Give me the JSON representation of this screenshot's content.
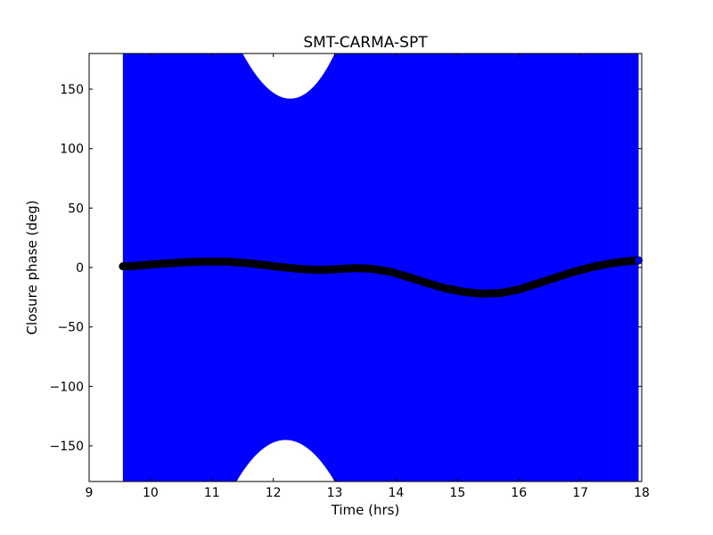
{
  "chart_data": {
    "type": "scatter",
    "title": "SMT-CARMA-SPT",
    "xlabel": "Time (hrs)",
    "ylabel": "Closure phase (deg)",
    "xlim": [
      9,
      18
    ],
    "ylim": [
      -180,
      180
    ],
    "xticks": [
      9,
      10,
      11,
      12,
      13,
      14,
      15,
      16,
      17,
      18
    ],
    "xtick_labels": [
      "9",
      "10",
      "11",
      "12",
      "13",
      "14",
      "15",
      "16",
      "17",
      "18"
    ],
    "yticks": [
      150,
      100,
      50,
      0,
      -50,
      -100,
      -150
    ],
    "ytick_labels": [
      "150",
      "100",
      "50",
      "0",
      "−50",
      "−100",
      "−150"
    ],
    "grid": false,
    "colors": {
      "band": "#0000ff",
      "points": "#000000",
      "last_point": "#0000ff",
      "frame": "#000000"
    },
    "band": {
      "x_range": [
        9.55,
        17.95
      ],
      "upper_gap": {
        "x": [
          11.5,
          12.3,
          13.0
        ],
        "y_bottom_at_center": 142
      },
      "lower_gap": {
        "x": [
          11.4,
          12.2,
          13.0
        ],
        "y_top_at_center": -145
      }
    },
    "series": [
      {
        "x": [
          9.55,
          9.8,
          10.0,
          10.3,
          10.6,
          10.9,
          11.2,
          11.5,
          11.8,
          12.1,
          12.4,
          12.7,
          13.0,
          13.3,
          13.6,
          13.9,
          14.2,
          14.5,
          14.8,
          15.1,
          15.4,
          15.7,
          16.0,
          16.3,
          16.6,
          16.9,
          17.2,
          17.5,
          17.8,
          17.95
        ],
        "y": [
          1,
          1.5,
          2.5,
          3.5,
          4.5,
          5,
          5,
          4,
          2.5,
          0.5,
          -1,
          -2,
          -1.5,
          -0.5,
          -1,
          -3.5,
          -8,
          -13,
          -17.5,
          -20.5,
          -22,
          -21.5,
          -18.5,
          -13.5,
          -8.5,
          -3.5,
          0.5,
          3.5,
          5.5,
          6
        ]
      }
    ]
  }
}
